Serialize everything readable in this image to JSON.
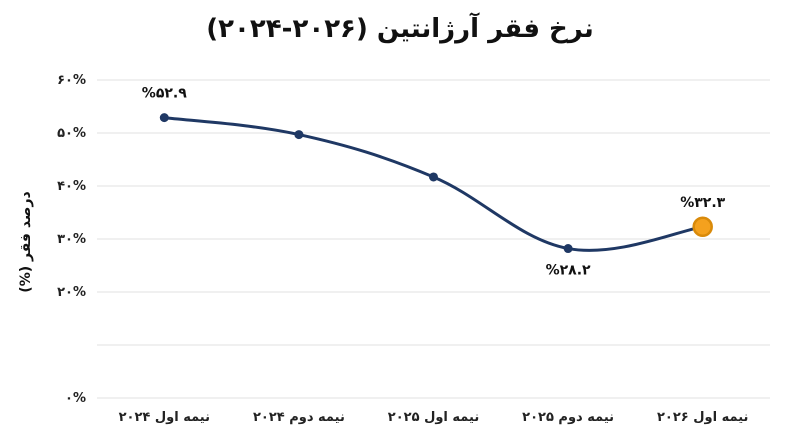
{
  "chart_data": {
    "type": "line",
    "title": "نرخ فقر آرژانتین (۲۰۲۶-۲۰۲۴)",
    "ylabel": "درصد فقر (%)",
    "xlabel": "",
    "categories": [
      "نیمه اول ۲۰۲۴",
      "نیمه دوم ۲۰۲۴",
      "نیمه اول ۲۰۲۵",
      "نیمه دوم ۲۰۲۵",
      "نیمه اول ۲۰۲۶"
    ],
    "values": [
      52.9,
      49.7,
      41.7,
      28.2,
      32.3
    ],
    "ylim": [
      0,
      60
    ],
    "yticks": [
      0,
      10,
      20,
      30,
      40,
      50,
      60
    ],
    "ytick_labels": [
      "۰%",
      "",
      "۲۰%",
      "۳۰%",
      "۴۰%",
      "۵۰%",
      "۶۰%"
    ],
    "data_labels": [
      {
        "index": 0,
        "text": "%۵۲.۹"
      },
      {
        "index": 3,
        "text": "%۲۸.۲"
      },
      {
        "index": 4,
        "text": "%۳۲.۳"
      }
    ],
    "grid": true,
    "colors": {
      "line": "#1f3864",
      "marker": "#1f3864",
      "highlight_fill": "#f4a11e",
      "highlight_stroke": "#d98a0a",
      "grid": "#e2e2e2"
    },
    "highlight_index": 4
  }
}
